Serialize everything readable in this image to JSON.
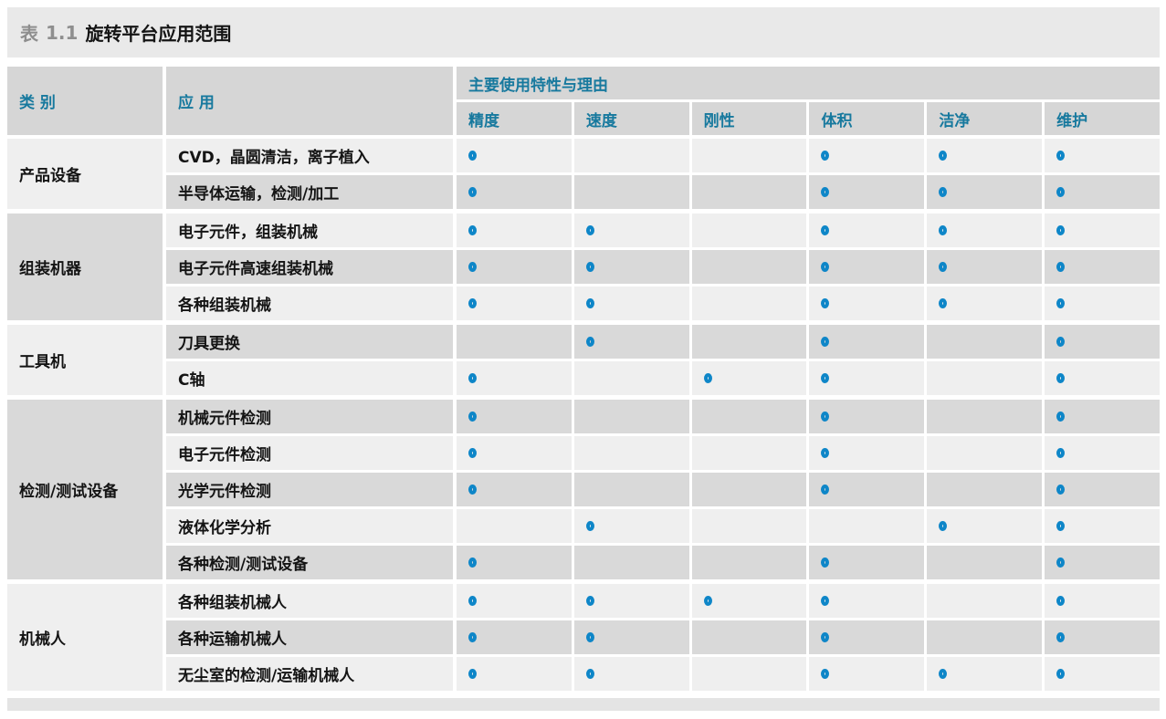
{
  "title": {
    "label": "表",
    "number": "1.1",
    "text": "旋转平台应用范围"
  },
  "table": {
    "col_category": "类 别",
    "col_application": "应 用",
    "col_group": "主要使用特性与理由",
    "characteristics": [
      "精度",
      "速度",
      "刚性",
      "体积",
      "洁净",
      "维护"
    ],
    "marker_symbol": "open-circle",
    "groups": [
      {
        "category": "产品设备",
        "rows": [
          {
            "application": "CVD，晶圆清洁，离子植入",
            "marks": [
              1,
              0,
              0,
              1,
              1,
              1
            ]
          },
          {
            "application": "半导体运输，检测/加工",
            "marks": [
              1,
              0,
              0,
              1,
              1,
              1
            ]
          }
        ]
      },
      {
        "category": "组装机器",
        "rows": [
          {
            "application": "电子元件，组装机械",
            "marks": [
              1,
              1,
              0,
              1,
              1,
              1
            ]
          },
          {
            "application": "电子元件高速组装机械",
            "marks": [
              1,
              1,
              0,
              1,
              1,
              1
            ]
          },
          {
            "application": "各种组装机械",
            "marks": [
              1,
              1,
              0,
              1,
              1,
              1
            ]
          }
        ]
      },
      {
        "category": "工具机",
        "rows": [
          {
            "application": "刀具更换",
            "marks": [
              0,
              1,
              0,
              1,
              0,
              1
            ]
          },
          {
            "application": "C轴",
            "marks": [
              1,
              0,
              1,
              1,
              0,
              1
            ]
          }
        ]
      },
      {
        "category": "检测/测试设备",
        "rows": [
          {
            "application": "机械元件检测",
            "marks": [
              1,
              0,
              0,
              1,
              0,
              1
            ]
          },
          {
            "application": "电子元件检测",
            "marks": [
              1,
              0,
              0,
              1,
              0,
              1
            ]
          },
          {
            "application": "光学元件检测",
            "marks": [
              1,
              0,
              0,
              1,
              0,
              1
            ]
          },
          {
            "application": "液体化学分析",
            "marks": [
              0,
              1,
              0,
              0,
              1,
              1
            ]
          },
          {
            "application": "各种检测/测试设备",
            "marks": [
              1,
              0,
              0,
              1,
              0,
              1
            ]
          }
        ]
      },
      {
        "category": "机械人",
        "rows": [
          {
            "application": "各种组装机械人",
            "marks": [
              1,
              1,
              1,
              1,
              0,
              1
            ]
          },
          {
            "application": "各种运输机械人",
            "marks": [
              1,
              1,
              0,
              1,
              0,
              1
            ]
          },
          {
            "application": "无尘室的检测/运输机械人",
            "marks": [
              1,
              1,
              0,
              1,
              1,
              1
            ]
          }
        ]
      }
    ]
  },
  "colors": {
    "title_band_bg": "#e9e9e9",
    "header_bg": "#d6d6d6",
    "row_light_bg": "#efefef",
    "row_dark_bg": "#d9d9d9",
    "header_text": "#17799e",
    "marker_blue": "#0e86c8",
    "title_gray": "#8e8e8e",
    "body_text": "#141414",
    "bottom_band_bg": "#e4e4e4"
  }
}
